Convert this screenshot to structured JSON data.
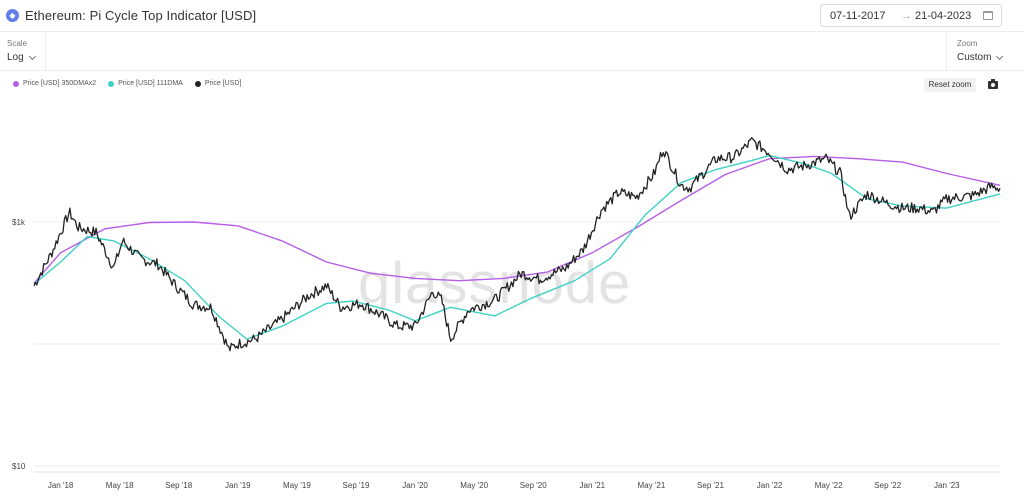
{
  "header": {
    "icon": "ethereum-icon",
    "title": "Ethereum: Pi Cycle Top Indicator [USD]",
    "date_from": "07-11-2017",
    "date_arrow": "→",
    "date_to": "21-04-2023"
  },
  "controls": {
    "scale_label": "Scale",
    "scale_value": "Log",
    "zoom_label": "Zoom",
    "zoom_value": "Custom"
  },
  "toolbar": {
    "reset_zoom": "Reset zoom"
  },
  "watermark": "glassnode",
  "colors": {
    "ma350x2": "#b65ee8",
    "ma111": "#3fd1c3",
    "price": "#222222"
  },
  "chart_data": {
    "type": "line",
    "title": "Ethereum: Pi Cycle Top Indicator [USD]",
    "y_scale": "log",
    "y_ticks": [
      {
        "value": 1000,
        "label": "$1k"
      },
      {
        "value": 100,
        "label": ""
      },
      {
        "value": 10,
        "label": "$10"
      }
    ],
    "ylim": [
      10,
      10000
    ],
    "x_ticks": [
      "Jan '18",
      "May '18",
      "Sep '18",
      "Jan '19",
      "May '19",
      "Sep '19",
      "Jan '20",
      "May '20",
      "Sep '20",
      "Jan '21",
      "May '21",
      "Sep '21",
      "Jan '22",
      "May '22",
      "Sep '22",
      "Jan '23"
    ],
    "x_range": [
      2017.85,
      2023.3
    ],
    "legend": [
      "Price [USD] 350DMAx2",
      "Price [USD] 111DMA",
      "Price [USD]"
    ],
    "series": [
      {
        "name": "Price [USD] 350DMAx2",
        "color": "#b65ee8",
        "points": [
          [
            2017.85,
            315
          ],
          [
            2018.0,
            560
          ],
          [
            2018.25,
            880
          ],
          [
            2018.5,
            990
          ],
          [
            2018.75,
            1000
          ],
          [
            2019.0,
            930
          ],
          [
            2019.25,
            700
          ],
          [
            2019.5,
            470
          ],
          [
            2019.75,
            380
          ],
          [
            2020.0,
            345
          ],
          [
            2020.25,
            330
          ],
          [
            2020.5,
            345
          ],
          [
            2020.75,
            390
          ],
          [
            2021.0,
            560
          ],
          [
            2021.25,
            900
          ],
          [
            2021.5,
            1500
          ],
          [
            2021.75,
            2450
          ],
          [
            2022.0,
            3300
          ],
          [
            2022.25,
            3450
          ],
          [
            2022.5,
            3300
          ],
          [
            2022.75,
            3100
          ],
          [
            2023.0,
            2500
          ],
          [
            2023.3,
            2000
          ]
        ]
      },
      {
        "name": "Price [USD] 111DMA",
        "color": "#3fd1c3",
        "points": [
          [
            2017.85,
            310
          ],
          [
            2018.0,
            470
          ],
          [
            2018.15,
            760
          ],
          [
            2018.3,
            700
          ],
          [
            2018.5,
            500
          ],
          [
            2018.7,
            330
          ],
          [
            2018.9,
            165
          ],
          [
            2019.05,
            110
          ],
          [
            2019.25,
            140
          ],
          [
            2019.5,
            215
          ],
          [
            2019.65,
            225
          ],
          [
            2019.85,
            190
          ],
          [
            2020.0,
            155
          ],
          [
            2020.2,
            200
          ],
          [
            2020.45,
            170
          ],
          [
            2020.65,
            235
          ],
          [
            2020.9,
            330
          ],
          [
            2021.1,
            500
          ],
          [
            2021.3,
            1150
          ],
          [
            2021.5,
            2100
          ],
          [
            2021.7,
            2700
          ],
          [
            2021.9,
            3200
          ],
          [
            2022.0,
            3500
          ],
          [
            2022.2,
            3000
          ],
          [
            2022.35,
            2500
          ],
          [
            2022.55,
            1550
          ],
          [
            2022.75,
            1350
          ],
          [
            2023.0,
            1300
          ],
          [
            2023.3,
            1700
          ]
        ]
      },
      {
        "name": "Price [USD]",
        "color": "#222222",
        "points": [
          [
            2017.85,
            300
          ],
          [
            2017.95,
            560
          ],
          [
            2018.05,
            1200
          ],
          [
            2018.1,
            900
          ],
          [
            2018.2,
            820
          ],
          [
            2018.3,
            420
          ],
          [
            2018.35,
            700
          ],
          [
            2018.45,
            500
          ],
          [
            2018.55,
            450
          ],
          [
            2018.65,
            300
          ],
          [
            2018.75,
            210
          ],
          [
            2018.85,
            200
          ],
          [
            2018.95,
            90
          ],
          [
            2019.0,
            100
          ],
          [
            2019.1,
            110
          ],
          [
            2019.25,
            160
          ],
          [
            2019.4,
            250
          ],
          [
            2019.5,
            300
          ],
          [
            2019.58,
            200
          ],
          [
            2019.7,
            215
          ],
          [
            2019.8,
            175
          ],
          [
            2019.9,
            140
          ],
          [
            2020.0,
            140
          ],
          [
            2020.1,
            270
          ],
          [
            2020.15,
            230
          ],
          [
            2020.2,
            110
          ],
          [
            2020.3,
            190
          ],
          [
            2020.45,
            230
          ],
          [
            2020.6,
            380
          ],
          [
            2020.7,
            340
          ],
          [
            2020.85,
            420
          ],
          [
            2020.95,
            600
          ],
          [
            2021.05,
            1250
          ],
          [
            2021.15,
            1750
          ],
          [
            2021.25,
            1600
          ],
          [
            2021.35,
            2500
          ],
          [
            2021.4,
            4000
          ],
          [
            2021.5,
            2000
          ],
          [
            2021.55,
            1900
          ],
          [
            2021.7,
            3300
          ],
          [
            2021.8,
            3400
          ],
          [
            2021.9,
            4600
          ],
          [
            2022.0,
            3700
          ],
          [
            2022.1,
            2700
          ],
          [
            2022.2,
            2900
          ],
          [
            2022.32,
            3300
          ],
          [
            2022.4,
            2500
          ],
          [
            2022.45,
            1100
          ],
          [
            2022.55,
            1700
          ],
          [
            2022.65,
            1450
          ],
          [
            2022.75,
            1300
          ],
          [
            2022.85,
            1300
          ],
          [
            2022.92,
            1200
          ],
          [
            2023.0,
            1550
          ],
          [
            2023.15,
            1650
          ],
          [
            2023.25,
            1950
          ],
          [
            2023.3,
            1900
          ]
        ]
      }
    ]
  }
}
